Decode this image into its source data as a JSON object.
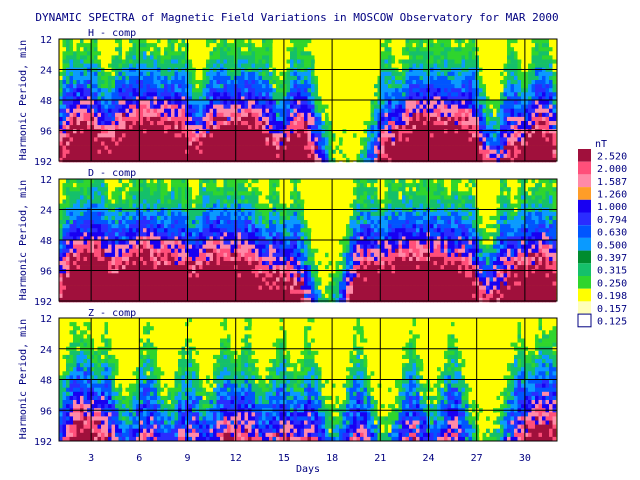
{
  "chart_data": {
    "type": "heatmap",
    "title": "DYNAMIC SPECTRA of Magnetic Field Variations in MOSCOW Observatory for MAR 2000",
    "xlabel": "Days",
    "ylabel": "Harmonic Period, min",
    "x_ticks": [
      "3",
      "6",
      "9",
      "12",
      "15",
      "18",
      "21",
      "24",
      "27",
      "30"
    ],
    "x_tick_values": [
      3,
      6,
      9,
      12,
      15,
      18,
      21,
      24,
      27,
      30
    ],
    "xlim": [
      1,
      32
    ],
    "y_ticks": [
      "12",
      "24",
      "48",
      "96",
      "192"
    ],
    "y_scale": "log2",
    "ylim": [
      12,
      192
    ],
    "grid": true,
    "panels": [
      {
        "name": "H - comp",
        "active_days": [
          1.5,
          2.3,
          3.1,
          4.6,
          5.5,
          6.2,
          7.0,
          7.9,
          8.7,
          10.4,
          11.2,
          12.1,
          12.9,
          13.8,
          15.5,
          16.3,
          21.3,
          22.6,
          23.4,
          24.2,
          25.0,
          25.9,
          26.7,
          29.1,
          30.6,
          31.3
        ]
      },
      {
        "name": "D - comp",
        "active_days": [
          1.5,
          2.3,
          3.0,
          3.6,
          4.7,
          5.6,
          6.3,
          7.1,
          7.9,
          8.7,
          9.9,
          10.6,
          11.4,
          12.2,
          13.0,
          14.3,
          15.6,
          19.6,
          20.4,
          21.5,
          22.3,
          23.1,
          23.9,
          24.7,
          25.6,
          26.5,
          28.6,
          29.8,
          30.7,
          31.5
        ]
      },
      {
        "name": "Z - comp",
        "active_days": [
          1.8,
          2.6,
          3.8,
          6.4,
          8.9,
          11.2,
          12.6,
          14.7,
          16.5,
          19.5,
          22.9,
          25.4,
          29.6,
          30.9,
          31.7
        ]
      }
    ],
    "colorbar": {
      "unit": "nT",
      "levels": [
        "2.520",
        "2.000",
        "1.587",
        "1.260",
        "1.000",
        "0.794",
        "0.630",
        "0.500",
        "0.397",
        "0.315",
        "0.250",
        "0.198",
        "0.157",
        "0.125"
      ],
      "colors": [
        "#a0103c",
        "#ff4f7a",
        "#ff8aa8",
        "#ff9d28",
        "#1800f2",
        "#2a2cff",
        "#0055ff",
        "#0a9aff",
        "#008c2f",
        "#15c06a",
        "#2fd52d",
        "#ffff00",
        "#ffffb8",
        "#ffffff"
      ]
    }
  }
}
